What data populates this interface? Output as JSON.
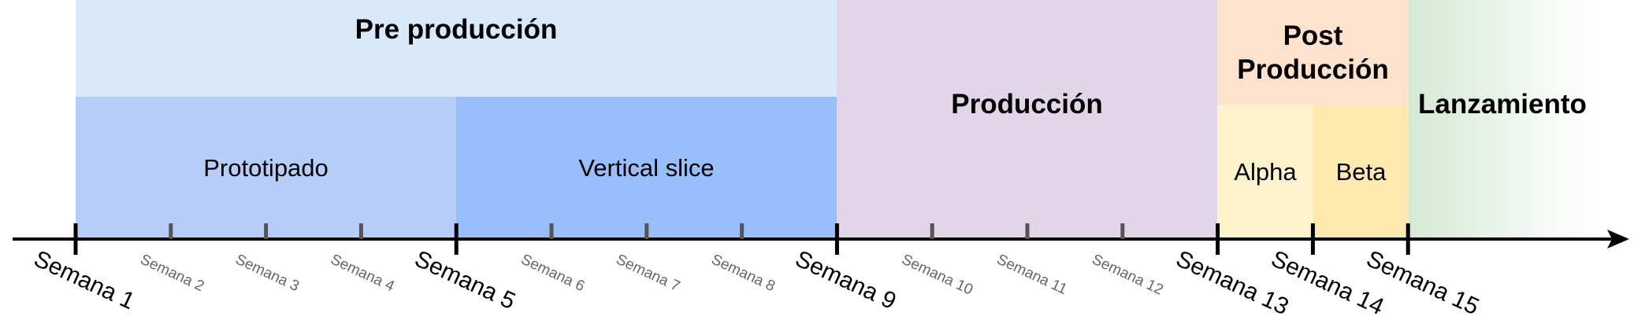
{
  "phases": {
    "pre_produccion": "Pre producción",
    "prototipado": "Prototipado",
    "vertical_slice": "Vertical slice",
    "produccion": "Producción",
    "post_produccion": "Post Producción",
    "alpha": "Alpha",
    "beta": "Beta",
    "lanzamiento": "Lanzamiento"
  },
  "weeks": [
    {
      "label": "Semana 1",
      "major": true
    },
    {
      "label": "Semana 2",
      "major": false
    },
    {
      "label": "Semana 3",
      "major": false
    },
    {
      "label": "Semana 4",
      "major": false
    },
    {
      "label": "Semana 5",
      "major": true
    },
    {
      "label": "Semana 6",
      "major": false
    },
    {
      "label": "Semana 7",
      "major": false
    },
    {
      "label": "Semana 8",
      "major": false
    },
    {
      "label": "Semana 9",
      "major": true
    },
    {
      "label": "Semana 10",
      "major": false
    },
    {
      "label": "Semana 11",
      "major": false
    },
    {
      "label": "Semana 12",
      "major": false
    },
    {
      "label": "Semana 13",
      "major": true
    },
    {
      "label": "Semana 14",
      "major": true
    },
    {
      "label": "Semana 15",
      "major": true
    }
  ],
  "colors": {
    "pre_produccion": "#dae8fc",
    "prototipado": "#b8cefa",
    "vertical_slice": "#98befc",
    "produccion": "#e2d5e8",
    "post_produccion": "#fde3cd",
    "alpha": "#fef3cc",
    "beta": "#fde8ad",
    "lanzamiento": "#d5e8d5"
  }
}
